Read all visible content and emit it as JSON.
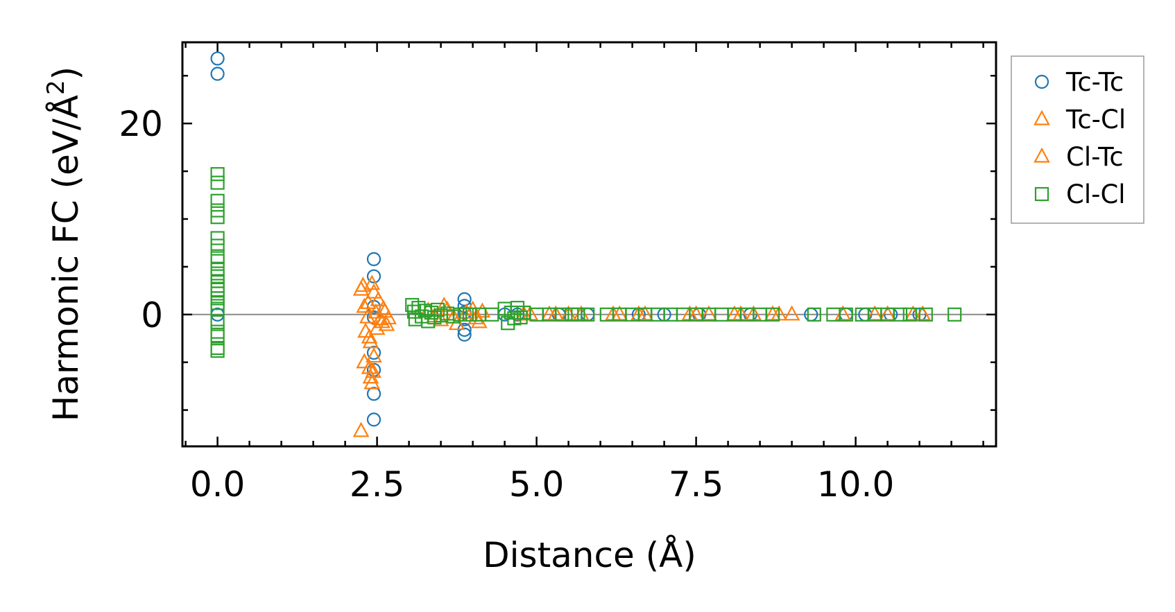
{
  "chart_data": {
    "type": "scatter",
    "title": "",
    "xlabel": "Distance (Å)",
    "ylabel": "Harmonic FC (eV/Å",
    "ylabel_sup": "2",
    "ylabel_close": ")",
    "xlim": [
      -0.55,
      12.2
    ],
    "ylim": [
      -13.8,
      28.5
    ],
    "xticks": [
      0,
      2.5,
      5,
      7.5,
      10
    ],
    "xtick_labels": [
      "0.0",
      "2.5",
      "5.0",
      "7.5",
      "10.0"
    ],
    "yticks": [
      0,
      20
    ],
    "ytick_labels": [
      "0",
      "20"
    ],
    "legend_position": "outside upper right",
    "series": [
      {
        "name": "Tc-Tc",
        "marker": "circle",
        "color": "#1f77b4",
        "points": [
          [
            0,
            26.8
          ],
          [
            0,
            25.2
          ],
          [
            0,
            0
          ],
          [
            2.45,
            5.8
          ],
          [
            2.45,
            4.0
          ],
          [
            2.45,
            0.8
          ],
          [
            2.45,
            -0.3
          ],
          [
            2.45,
            -4.0
          ],
          [
            2.45,
            -5.8
          ],
          [
            2.45,
            -8.3
          ],
          [
            2.45,
            -11.0
          ],
          [
            3.87,
            1.6
          ],
          [
            3.87,
            0.9
          ],
          [
            3.87,
            0.2
          ],
          [
            3.87,
            -0.5
          ],
          [
            3.87,
            -1.6
          ],
          [
            3.87,
            -2.1
          ],
          [
            4.5,
            0
          ],
          [
            4.7,
            0
          ],
          [
            5.35,
            0
          ],
          [
            5.8,
            0
          ],
          [
            6.6,
            0
          ],
          [
            7.0,
            0
          ],
          [
            7.55,
            0
          ],
          [
            8.35,
            0
          ],
          [
            9.3,
            0
          ],
          [
            9.85,
            0
          ],
          [
            10.15,
            0
          ],
          [
            10.55,
            0
          ],
          [
            11.0,
            0
          ]
        ]
      },
      {
        "name": "Tc-Cl",
        "marker": "triangle",
        "color": "#ff7f0e",
        "points": [
          [
            2.25,
            2.6
          ],
          [
            2.3,
            0.8
          ],
          [
            2.35,
            -0.3
          ],
          [
            2.38,
            -2.4
          ],
          [
            2.42,
            3.2
          ],
          [
            2.45,
            2.3
          ],
          [
            2.5,
            -1.5
          ],
          [
            2.55,
            -0.5
          ],
          [
            2.6,
            0.6
          ],
          [
            2.65,
            -1.1
          ],
          [
            2.25,
            -12.2
          ],
          [
            2.38,
            -5.6
          ],
          [
            2.4,
            -6.6
          ],
          [
            2.42,
            -7.2
          ],
          [
            2.45,
            -4.4
          ],
          [
            3.3,
            0.4
          ],
          [
            3.5,
            -0.6
          ],
          [
            3.6,
            0.5
          ],
          [
            3.75,
            -1.0
          ],
          [
            4.0,
            0.5
          ],
          [
            4.1,
            -0.8
          ],
          [
            4.8,
            0
          ],
          [
            5.2,
            0
          ],
          [
            5.5,
            0
          ],
          [
            6.2,
            0
          ],
          [
            6.7,
            0
          ],
          [
            7.5,
            0
          ],
          [
            8.1,
            0
          ],
          [
            8.4,
            0
          ],
          [
            8.8,
            0
          ],
          [
            9.0,
            0
          ],
          [
            10.3,
            0
          ],
          [
            11.05,
            0
          ]
        ]
      },
      {
        "name": "Cl-Tc",
        "marker": "triangle",
        "color": "#ff7f0e",
        "points": [
          [
            2.28,
            3.0
          ],
          [
            2.32,
            -1.8
          ],
          [
            2.36,
            1.2
          ],
          [
            2.4,
            -2.9
          ],
          [
            2.48,
            0.2
          ],
          [
            2.52,
            1.5
          ],
          [
            2.58,
            -0.8
          ],
          [
            2.62,
            0.3
          ],
          [
            2.68,
            -0.4
          ],
          [
            2.3,
            -5.0
          ],
          [
            2.44,
            -6.0
          ],
          [
            3.4,
            -0.2
          ],
          [
            3.55,
            0.9
          ],
          [
            3.7,
            -0.3
          ],
          [
            3.9,
            0.2
          ],
          [
            4.05,
            -0.4
          ],
          [
            4.15,
            0.3
          ],
          [
            4.9,
            0
          ],
          [
            5.3,
            0
          ],
          [
            5.7,
            0
          ],
          [
            6.3,
            0
          ],
          [
            6.6,
            0
          ],
          [
            7.4,
            0
          ],
          [
            7.7,
            0
          ],
          [
            8.2,
            0
          ],
          [
            8.7,
            0
          ],
          [
            9.8,
            0
          ],
          [
            10.5,
            0
          ],
          [
            10.9,
            0
          ]
        ]
      },
      {
        "name": "Cl-Cl",
        "marker": "square",
        "color": "#2ca02c",
        "points": [
          [
            0,
            14.7
          ],
          [
            0,
            13.8
          ],
          [
            0,
            11.9
          ],
          [
            0,
            10.9
          ],
          [
            0,
            10.2
          ],
          [
            0,
            8.0
          ],
          [
            0,
            7.2
          ],
          [
            0,
            6.1
          ],
          [
            0,
            5.6
          ],
          [
            0,
            4.7
          ],
          [
            0,
            4.0
          ],
          [
            0,
            3.5
          ],
          [
            0,
            3.0
          ],
          [
            0,
            2.6
          ],
          [
            0,
            2.2
          ],
          [
            0,
            1.7
          ],
          [
            0,
            1.2
          ],
          [
            0,
            0.6
          ],
          [
            0,
            -0.8
          ],
          [
            0,
            -1.8
          ],
          [
            0,
            -2.3
          ],
          [
            0,
            -3.5
          ],
          [
            0,
            -3.8
          ],
          [
            3.05,
            1.0
          ],
          [
            3.08,
            0.3
          ],
          [
            3.1,
            -0.5
          ],
          [
            3.15,
            0.7
          ],
          [
            3.2,
            -0.2
          ],
          [
            3.25,
            0.4
          ],
          [
            3.3,
            -0.7
          ],
          [
            3.35,
            0.2
          ],
          [
            3.4,
            -0.3
          ],
          [
            3.45,
            0.5
          ],
          [
            3.5,
            -0.1
          ],
          [
            3.6,
            0.1
          ],
          [
            3.7,
            -0.2
          ],
          [
            3.8,
            0
          ],
          [
            3.95,
            0
          ],
          [
            4.1,
            0
          ],
          [
            4.3,
            0
          ],
          [
            4.5,
            0.6
          ],
          [
            4.55,
            -0.9
          ],
          [
            4.6,
            0.2
          ],
          [
            4.65,
            -0.4
          ],
          [
            4.7,
            0.7
          ],
          [
            4.75,
            -0.3
          ],
          [
            4.8,
            0.2
          ],
          [
            5.0,
            0
          ],
          [
            5.2,
            0
          ],
          [
            5.4,
            0
          ],
          [
            5.55,
            0
          ],
          [
            5.65,
            0
          ],
          [
            5.8,
            0
          ],
          [
            6.1,
            0
          ],
          [
            6.3,
            0
          ],
          [
            6.5,
            0
          ],
          [
            6.7,
            0
          ],
          [
            6.9,
            0
          ],
          [
            7.1,
            0
          ],
          [
            7.3,
            0
          ],
          [
            7.5,
            0
          ],
          [
            7.7,
            0
          ],
          [
            7.9,
            0
          ],
          [
            8.1,
            0
          ],
          [
            8.3,
            0
          ],
          [
            8.5,
            0
          ],
          [
            8.7,
            0
          ],
          [
            9.35,
            0
          ],
          [
            9.65,
            0
          ],
          [
            9.85,
            0
          ],
          [
            10.1,
            0
          ],
          [
            10.3,
            0
          ],
          [
            10.5,
            0
          ],
          [
            10.7,
            0
          ],
          [
            10.85,
            0
          ],
          [
            11.1,
            0
          ],
          [
            11.55,
            0
          ]
        ]
      }
    ]
  }
}
